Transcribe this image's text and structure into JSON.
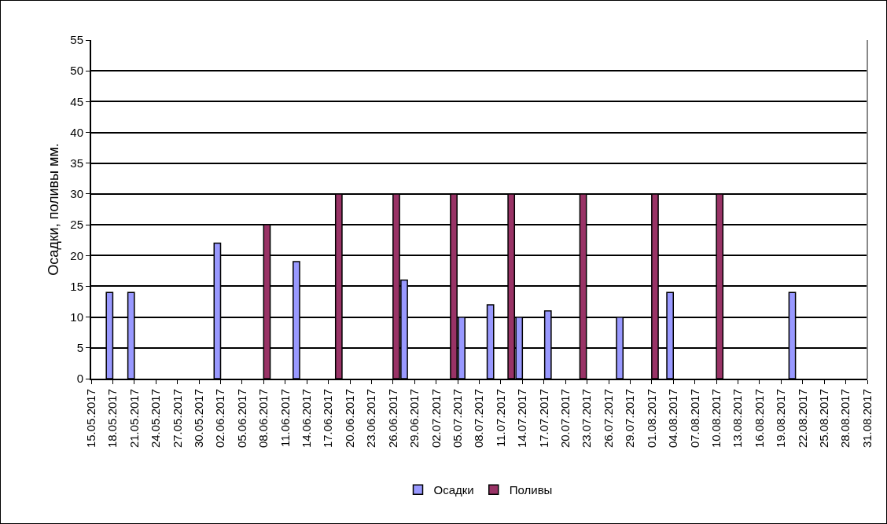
{
  "chart_data": {
    "type": "bar",
    "ylabel": "Осадки, поливы мм.",
    "series": [
      {
        "name": "Осадки",
        "color": "#9999ff",
        "x": [
          "2017-05-18",
          "2017-05-21",
          "2017-06-02",
          "2017-06-13",
          "2017-06-28",
          "2017-07-06",
          "2017-07-10",
          "2017-07-14",
          "2017-07-18",
          "2017-07-28",
          "2017-08-04",
          "2017-08-21"
        ],
        "values": [
          14,
          14,
          22,
          19,
          16,
          10,
          12,
          10,
          11,
          10,
          14,
          14
        ]
      },
      {
        "name": "Поливы",
        "color": "#993366",
        "x": [
          "2017-06-08",
          "2017-06-18",
          "2017-06-26",
          "2017-07-04",
          "2017-07-12",
          "2017-07-22",
          "2017-08-01",
          "2017-08-10"
        ],
        "values": [
          25,
          30,
          30,
          30,
          30,
          30,
          30,
          30
        ]
      }
    ],
    "xlim": [
      "2017-05-15",
      "2017-08-31"
    ],
    "xticks": [
      {
        "value": "2017-05-15",
        "label": "15.05.2017"
      },
      {
        "value": "2017-05-18",
        "label": "18.05.2017"
      },
      {
        "value": "2017-05-21",
        "label": "21.05.2017"
      },
      {
        "value": "2017-05-24",
        "label": "24.05.2017"
      },
      {
        "value": "2017-05-27",
        "label": "27.05.2017"
      },
      {
        "value": "2017-05-30",
        "label": "30.05.2017"
      },
      {
        "value": "2017-06-02",
        "label": "02.06.2017"
      },
      {
        "value": "2017-06-05",
        "label": "05.06.2017"
      },
      {
        "value": "2017-06-08",
        "label": "08.06.2017"
      },
      {
        "value": "2017-06-11",
        "label": "11.06.2017"
      },
      {
        "value": "2017-06-14",
        "label": "14.06.2017"
      },
      {
        "value": "2017-06-17",
        "label": "17.06.2017"
      },
      {
        "value": "2017-06-20",
        "label": "20.06.2017"
      },
      {
        "value": "2017-06-23",
        "label": "23.06.2017"
      },
      {
        "value": "2017-06-26",
        "label": "26.06.2017"
      },
      {
        "value": "2017-06-29",
        "label": "29.06.2017"
      },
      {
        "value": "2017-07-02",
        "label": "02.07.2017"
      },
      {
        "value": "2017-07-05",
        "label": "05.07.2017"
      },
      {
        "value": "2017-07-08",
        "label": "08.07.2017"
      },
      {
        "value": "2017-07-11",
        "label": "11.07.2017"
      },
      {
        "value": "2017-07-14",
        "label": "14.07.2017"
      },
      {
        "value": "2017-07-17",
        "label": "17.07.2017"
      },
      {
        "value": "2017-07-20",
        "label": "20.07.2017"
      },
      {
        "value": "2017-07-23",
        "label": "23.07.2017"
      },
      {
        "value": "2017-07-26",
        "label": "26.07.2017"
      },
      {
        "value": "2017-07-29",
        "label": "29.07.2017"
      },
      {
        "value": "2017-08-01",
        "label": "01.08.2017"
      },
      {
        "value": "2017-08-04",
        "label": "04.08.2017"
      },
      {
        "value": "2017-08-07",
        "label": "07.08.2017"
      },
      {
        "value": "2017-08-10",
        "label": "10.08.2017"
      },
      {
        "value": "2017-08-13",
        "label": "13.08.2017"
      },
      {
        "value": "2017-08-16",
        "label": "16.08.2017"
      },
      {
        "value": "2017-08-19",
        "label": "19.08.2017"
      },
      {
        "value": "2017-08-22",
        "label": "22.08.2017"
      },
      {
        "value": "2017-08-25",
        "label": "25.08.2017"
      },
      {
        "value": "2017-08-28",
        "label": "28.08.2017"
      },
      {
        "value": "2017-08-31",
        "label": "31.08.2017"
      }
    ],
    "ylim": [
      0,
      55
    ],
    "yticks": [
      0,
      5,
      10,
      15,
      20,
      25,
      30,
      35,
      40,
      45,
      50,
      55
    ],
    "grid": "y",
    "legend": "bottom"
  }
}
